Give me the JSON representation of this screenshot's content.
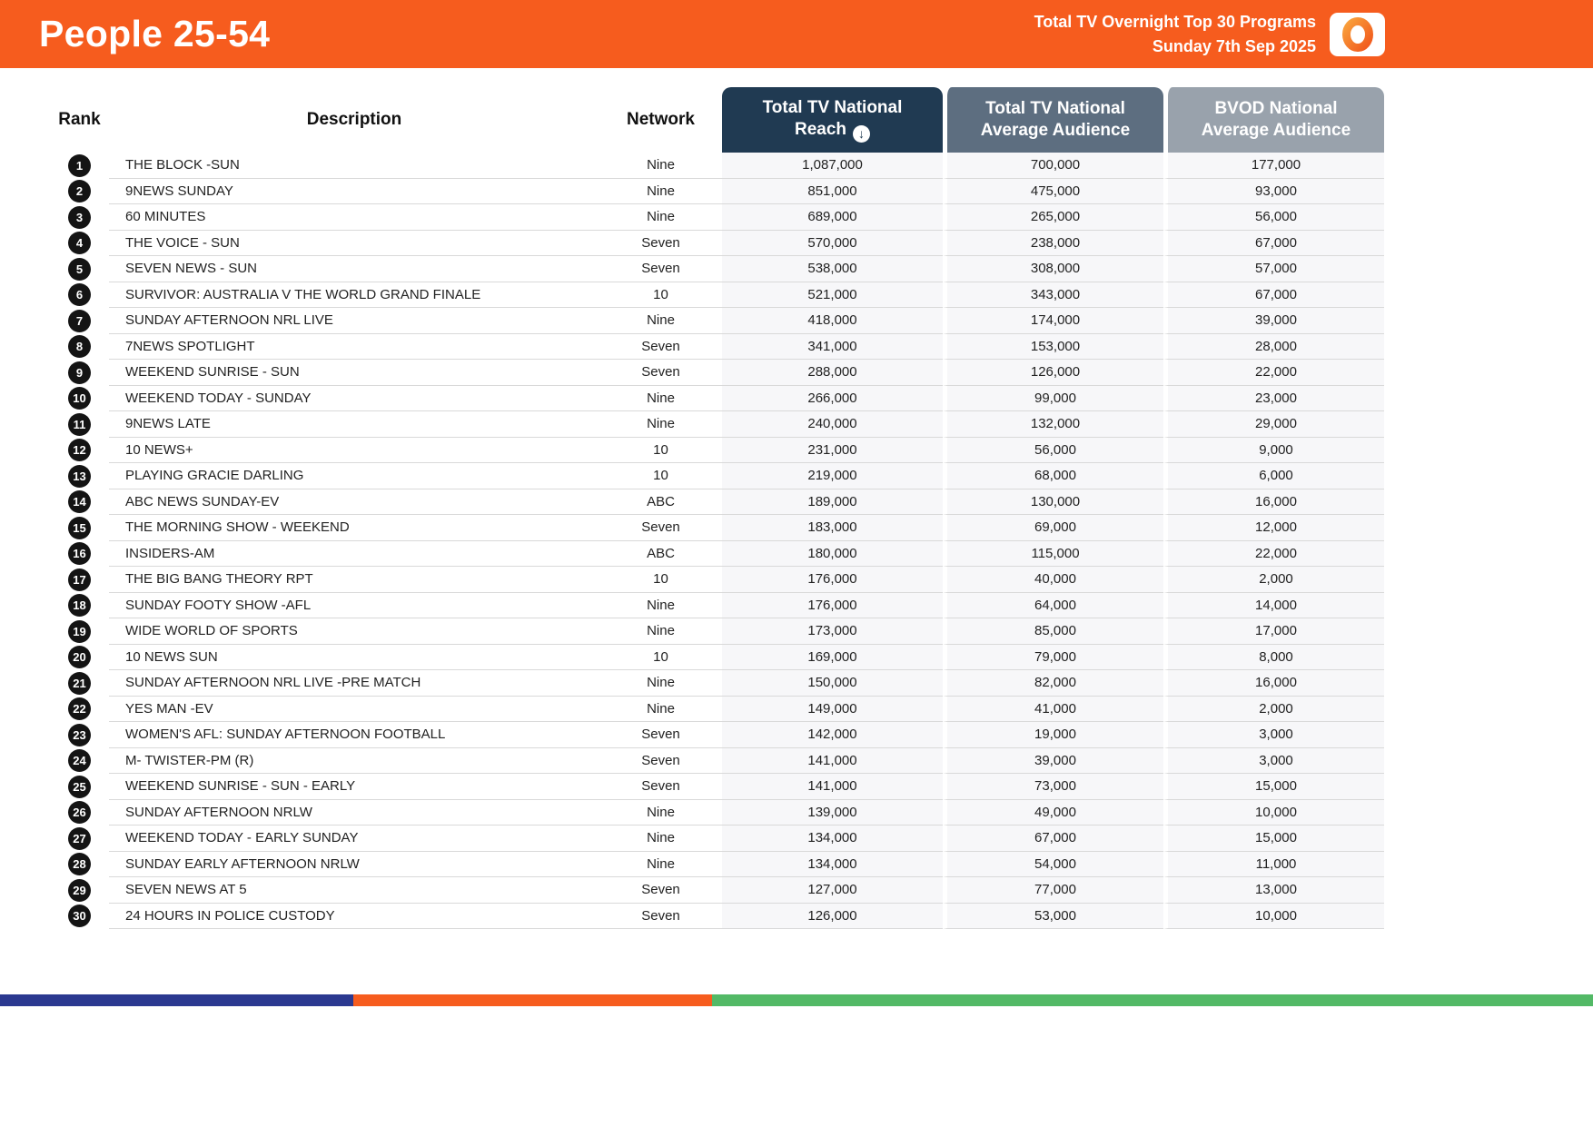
{
  "header": {
    "title": "People 25-54",
    "subtitle_line1": "Total TV Overnight Top 30 Programs",
    "subtitle_line2": "Sunday 7th Sep 2025"
  },
  "icons": {
    "sort_down": "↓"
  },
  "colors": {
    "brand_orange": "#F65C1E",
    "reach_header": "#203A52",
    "avg_header": "#5D6E80",
    "bvod_header": "#99A2AC",
    "rank_badge": "#141414"
  },
  "table": {
    "columns": {
      "rank": "Rank",
      "description": "Description",
      "network": "Network",
      "reach": "Total TV National Reach",
      "avg": "Total TV National Average Audience",
      "bvod": "BVOD National Average Audience"
    },
    "rows": [
      {
        "rank": "1",
        "description": "THE BLOCK -SUN",
        "network": "Nine",
        "reach": "1,087,000",
        "avg": "700,000",
        "bvod": "177,000"
      },
      {
        "rank": "2",
        "description": "9NEWS SUNDAY",
        "network": "Nine",
        "reach": "851,000",
        "avg": "475,000",
        "bvod": "93,000"
      },
      {
        "rank": "3",
        "description": "60 MINUTES",
        "network": "Nine",
        "reach": "689,000",
        "avg": "265,000",
        "bvod": "56,000"
      },
      {
        "rank": "4",
        "description": "THE VOICE - SUN",
        "network": "Seven",
        "reach": "570,000",
        "avg": "238,000",
        "bvod": "67,000"
      },
      {
        "rank": "5",
        "description": "SEVEN NEWS - SUN",
        "network": "Seven",
        "reach": "538,000",
        "avg": "308,000",
        "bvod": "57,000"
      },
      {
        "rank": "6",
        "description": "SURVIVOR: AUSTRALIA V THE WORLD GRAND FINALE",
        "network": "10",
        "reach": "521,000",
        "avg": "343,000",
        "bvod": "67,000"
      },
      {
        "rank": "7",
        "description": "SUNDAY AFTERNOON NRL LIVE",
        "network": "Nine",
        "reach": "418,000",
        "avg": "174,000",
        "bvod": "39,000"
      },
      {
        "rank": "8",
        "description": "7NEWS SPOTLIGHT",
        "network": "Seven",
        "reach": "341,000",
        "avg": "153,000",
        "bvod": "28,000"
      },
      {
        "rank": "9",
        "description": "WEEKEND SUNRISE - SUN",
        "network": "Seven",
        "reach": "288,000",
        "avg": "126,000",
        "bvod": "22,000"
      },
      {
        "rank": "10",
        "description": "WEEKEND TODAY - SUNDAY",
        "network": "Nine",
        "reach": "266,000",
        "avg": "99,000",
        "bvod": "23,000"
      },
      {
        "rank": "11",
        "description": "9NEWS LATE",
        "network": "Nine",
        "reach": "240,000",
        "avg": "132,000",
        "bvod": "29,000"
      },
      {
        "rank": "12",
        "description": "10 NEWS+",
        "network": "10",
        "reach": "231,000",
        "avg": "56,000",
        "bvod": "9,000"
      },
      {
        "rank": "13",
        "description": "PLAYING GRACIE DARLING",
        "network": "10",
        "reach": "219,000",
        "avg": "68,000",
        "bvod": "6,000"
      },
      {
        "rank": "14",
        "description": "ABC NEWS SUNDAY-EV",
        "network": "ABC",
        "reach": "189,000",
        "avg": "130,000",
        "bvod": "16,000"
      },
      {
        "rank": "15",
        "description": "THE MORNING SHOW - WEEKEND",
        "network": "Seven",
        "reach": "183,000",
        "avg": "69,000",
        "bvod": "12,000"
      },
      {
        "rank": "16",
        "description": "INSIDERS-AM",
        "network": "ABC",
        "reach": "180,000",
        "avg": "115,000",
        "bvod": "22,000"
      },
      {
        "rank": "17",
        "description": "THE BIG BANG THEORY RPT",
        "network": "10",
        "reach": "176,000",
        "avg": "40,000",
        "bvod": "2,000"
      },
      {
        "rank": "18",
        "description": "SUNDAY FOOTY SHOW -AFL",
        "network": "Nine",
        "reach": "176,000",
        "avg": "64,000",
        "bvod": "14,000"
      },
      {
        "rank": "19",
        "description": "WIDE WORLD OF SPORTS",
        "network": "Nine",
        "reach": "173,000",
        "avg": "85,000",
        "bvod": "17,000"
      },
      {
        "rank": "20",
        "description": "10 NEWS SUN",
        "network": "10",
        "reach": "169,000",
        "avg": "79,000",
        "bvod": "8,000"
      },
      {
        "rank": "21",
        "description": "SUNDAY AFTERNOON NRL LIVE -PRE MATCH",
        "network": "Nine",
        "reach": "150,000",
        "avg": "82,000",
        "bvod": "16,000"
      },
      {
        "rank": "22",
        "description": "YES MAN -EV",
        "network": "Nine",
        "reach": "149,000",
        "avg": "41,000",
        "bvod": "2,000"
      },
      {
        "rank": "23",
        "description": "WOMEN'S AFL: SUNDAY AFTERNOON FOOTBALL",
        "network": "Seven",
        "reach": "142,000",
        "avg": "19,000",
        "bvod": "3,000"
      },
      {
        "rank": "24",
        "description": "M- TWISTER-PM (R)",
        "network": "Seven",
        "reach": "141,000",
        "avg": "39,000",
        "bvod": "3,000"
      },
      {
        "rank": "25",
        "description": "WEEKEND SUNRISE - SUN - EARLY",
        "network": "Seven",
        "reach": "141,000",
        "avg": "73,000",
        "bvod": "15,000"
      },
      {
        "rank": "26",
        "description": "SUNDAY AFTERNOON NRLW",
        "network": "Nine",
        "reach": "139,000",
        "avg": "49,000",
        "bvod": "10,000"
      },
      {
        "rank": "27",
        "description": "WEEKEND TODAY - EARLY SUNDAY",
        "network": "Nine",
        "reach": "134,000",
        "avg": "67,000",
        "bvod": "15,000"
      },
      {
        "rank": "28",
        "description": "SUNDAY EARLY AFTERNOON NRLW",
        "network": "Nine",
        "reach": "134,000",
        "avg": "54,000",
        "bvod": "11,000"
      },
      {
        "rank": "29",
        "description": "SEVEN NEWS AT 5",
        "network": "Seven",
        "reach": "127,000",
        "avg": "77,000",
        "bvod": "13,000"
      },
      {
        "rank": "30",
        "description": "24 HOURS IN POLICE CUSTODY",
        "network": "Seven",
        "reach": "126,000",
        "avg": "53,000",
        "bvod": "10,000"
      }
    ]
  },
  "footer": {
    "segments": [
      {
        "color": "#2B3990",
        "width": "22.2%"
      },
      {
        "color": "#F65C1E",
        "width": "22.5%"
      },
      {
        "color": "#53B966",
        "width": "55.3%"
      }
    ]
  }
}
